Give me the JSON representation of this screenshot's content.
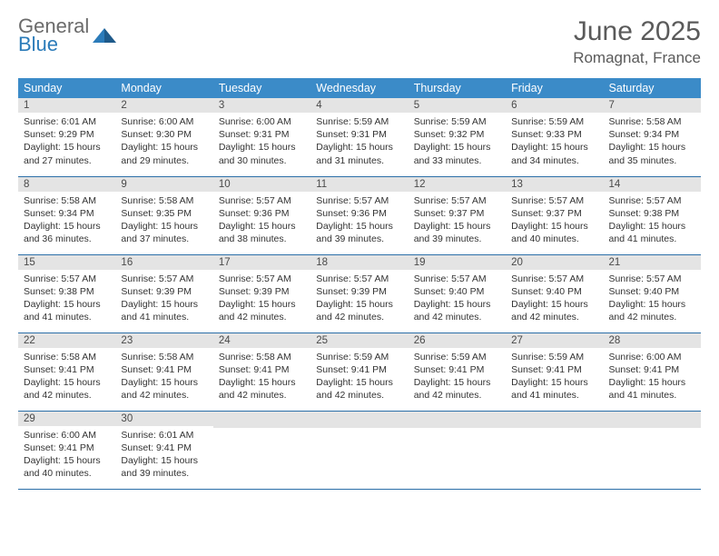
{
  "logo": {
    "line1": "General",
    "line2": "Blue"
  },
  "title": "June 2025",
  "location": "Romagnat, France",
  "colors": {
    "header_bg": "#3b8bc8",
    "header_text": "#ffffff",
    "border": "#2b6fa8",
    "daynum_bg": "#e4e4e4",
    "text": "#333333",
    "logo_gray": "#6b6b6b",
    "logo_blue": "#2b7bb9"
  },
  "weekdays": [
    "Sunday",
    "Monday",
    "Tuesday",
    "Wednesday",
    "Thursday",
    "Friday",
    "Saturday"
  ],
  "weeks": [
    [
      {
        "n": "1",
        "sr": "Sunrise: 6:01 AM",
        "ss": "Sunset: 9:29 PM",
        "dl": "Daylight: 15 hours and 27 minutes."
      },
      {
        "n": "2",
        "sr": "Sunrise: 6:00 AM",
        "ss": "Sunset: 9:30 PM",
        "dl": "Daylight: 15 hours and 29 minutes."
      },
      {
        "n": "3",
        "sr": "Sunrise: 6:00 AM",
        "ss": "Sunset: 9:31 PM",
        "dl": "Daylight: 15 hours and 30 minutes."
      },
      {
        "n": "4",
        "sr": "Sunrise: 5:59 AM",
        "ss": "Sunset: 9:31 PM",
        "dl": "Daylight: 15 hours and 31 minutes."
      },
      {
        "n": "5",
        "sr": "Sunrise: 5:59 AM",
        "ss": "Sunset: 9:32 PM",
        "dl": "Daylight: 15 hours and 33 minutes."
      },
      {
        "n": "6",
        "sr": "Sunrise: 5:59 AM",
        "ss": "Sunset: 9:33 PM",
        "dl": "Daylight: 15 hours and 34 minutes."
      },
      {
        "n": "7",
        "sr": "Sunrise: 5:58 AM",
        "ss": "Sunset: 9:34 PM",
        "dl": "Daylight: 15 hours and 35 minutes."
      }
    ],
    [
      {
        "n": "8",
        "sr": "Sunrise: 5:58 AM",
        "ss": "Sunset: 9:34 PM",
        "dl": "Daylight: 15 hours and 36 minutes."
      },
      {
        "n": "9",
        "sr": "Sunrise: 5:58 AM",
        "ss": "Sunset: 9:35 PM",
        "dl": "Daylight: 15 hours and 37 minutes."
      },
      {
        "n": "10",
        "sr": "Sunrise: 5:57 AM",
        "ss": "Sunset: 9:36 PM",
        "dl": "Daylight: 15 hours and 38 minutes."
      },
      {
        "n": "11",
        "sr": "Sunrise: 5:57 AM",
        "ss": "Sunset: 9:36 PM",
        "dl": "Daylight: 15 hours and 39 minutes."
      },
      {
        "n": "12",
        "sr": "Sunrise: 5:57 AM",
        "ss": "Sunset: 9:37 PM",
        "dl": "Daylight: 15 hours and 39 minutes."
      },
      {
        "n": "13",
        "sr": "Sunrise: 5:57 AM",
        "ss": "Sunset: 9:37 PM",
        "dl": "Daylight: 15 hours and 40 minutes."
      },
      {
        "n": "14",
        "sr": "Sunrise: 5:57 AM",
        "ss": "Sunset: 9:38 PM",
        "dl": "Daylight: 15 hours and 41 minutes."
      }
    ],
    [
      {
        "n": "15",
        "sr": "Sunrise: 5:57 AM",
        "ss": "Sunset: 9:38 PM",
        "dl": "Daylight: 15 hours and 41 minutes."
      },
      {
        "n": "16",
        "sr": "Sunrise: 5:57 AM",
        "ss": "Sunset: 9:39 PM",
        "dl": "Daylight: 15 hours and 41 minutes."
      },
      {
        "n": "17",
        "sr": "Sunrise: 5:57 AM",
        "ss": "Sunset: 9:39 PM",
        "dl": "Daylight: 15 hours and 42 minutes."
      },
      {
        "n": "18",
        "sr": "Sunrise: 5:57 AM",
        "ss": "Sunset: 9:39 PM",
        "dl": "Daylight: 15 hours and 42 minutes."
      },
      {
        "n": "19",
        "sr": "Sunrise: 5:57 AM",
        "ss": "Sunset: 9:40 PM",
        "dl": "Daylight: 15 hours and 42 minutes."
      },
      {
        "n": "20",
        "sr": "Sunrise: 5:57 AM",
        "ss": "Sunset: 9:40 PM",
        "dl": "Daylight: 15 hours and 42 minutes."
      },
      {
        "n": "21",
        "sr": "Sunrise: 5:57 AM",
        "ss": "Sunset: 9:40 PM",
        "dl": "Daylight: 15 hours and 42 minutes."
      }
    ],
    [
      {
        "n": "22",
        "sr": "Sunrise: 5:58 AM",
        "ss": "Sunset: 9:41 PM",
        "dl": "Daylight: 15 hours and 42 minutes."
      },
      {
        "n": "23",
        "sr": "Sunrise: 5:58 AM",
        "ss": "Sunset: 9:41 PM",
        "dl": "Daylight: 15 hours and 42 minutes."
      },
      {
        "n": "24",
        "sr": "Sunrise: 5:58 AM",
        "ss": "Sunset: 9:41 PM",
        "dl": "Daylight: 15 hours and 42 minutes."
      },
      {
        "n": "25",
        "sr": "Sunrise: 5:59 AM",
        "ss": "Sunset: 9:41 PM",
        "dl": "Daylight: 15 hours and 42 minutes."
      },
      {
        "n": "26",
        "sr": "Sunrise: 5:59 AM",
        "ss": "Sunset: 9:41 PM",
        "dl": "Daylight: 15 hours and 42 minutes."
      },
      {
        "n": "27",
        "sr": "Sunrise: 5:59 AM",
        "ss": "Sunset: 9:41 PM",
        "dl": "Daylight: 15 hours and 41 minutes."
      },
      {
        "n": "28",
        "sr": "Sunrise: 6:00 AM",
        "ss": "Sunset: 9:41 PM",
        "dl": "Daylight: 15 hours and 41 minutes."
      }
    ],
    [
      {
        "n": "29",
        "sr": "Sunrise: 6:00 AM",
        "ss": "Sunset: 9:41 PM",
        "dl": "Daylight: 15 hours and 40 minutes."
      },
      {
        "n": "30",
        "sr": "Sunrise: 6:01 AM",
        "ss": "Sunset: 9:41 PM",
        "dl": "Daylight: 15 hours and 39 minutes."
      },
      null,
      null,
      null,
      null,
      null
    ]
  ]
}
